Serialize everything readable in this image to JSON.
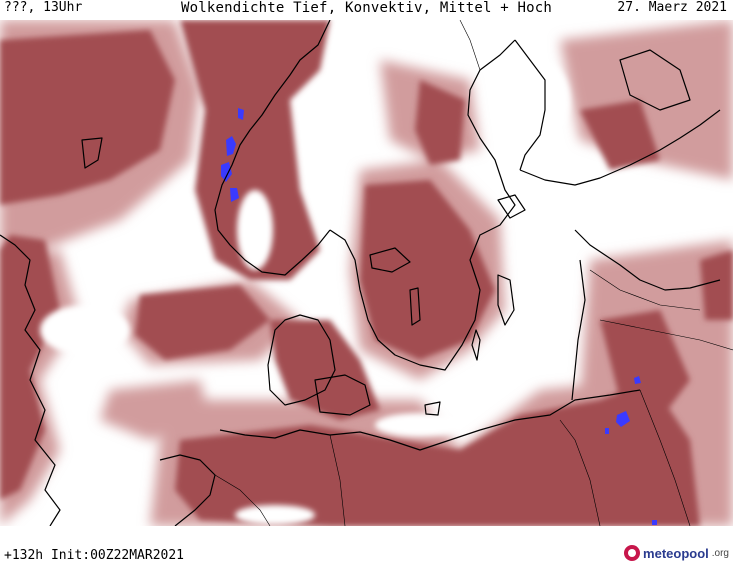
{
  "header": {
    "left_label": "???, 13Uhr",
    "title": "Wolkendichte  Tief, Konvektiv, Mittel + Hoch",
    "date": "27. Maerz 2021"
  },
  "footer": {
    "run_info": "+132h  Init:00Z22MAR2021",
    "logo_text": "meteopool",
    "logo_suffix": ".org"
  },
  "map": {
    "colors": {
      "cloud_dense": "#a24e51",
      "cloud_medium": "#b86c6c",
      "cloud_light": "#d19c9d",
      "cloud_faint": "#e8c7c8",
      "precip": "#3a3aff",
      "coastline": "#000000",
      "background": "#ffffff"
    }
  }
}
